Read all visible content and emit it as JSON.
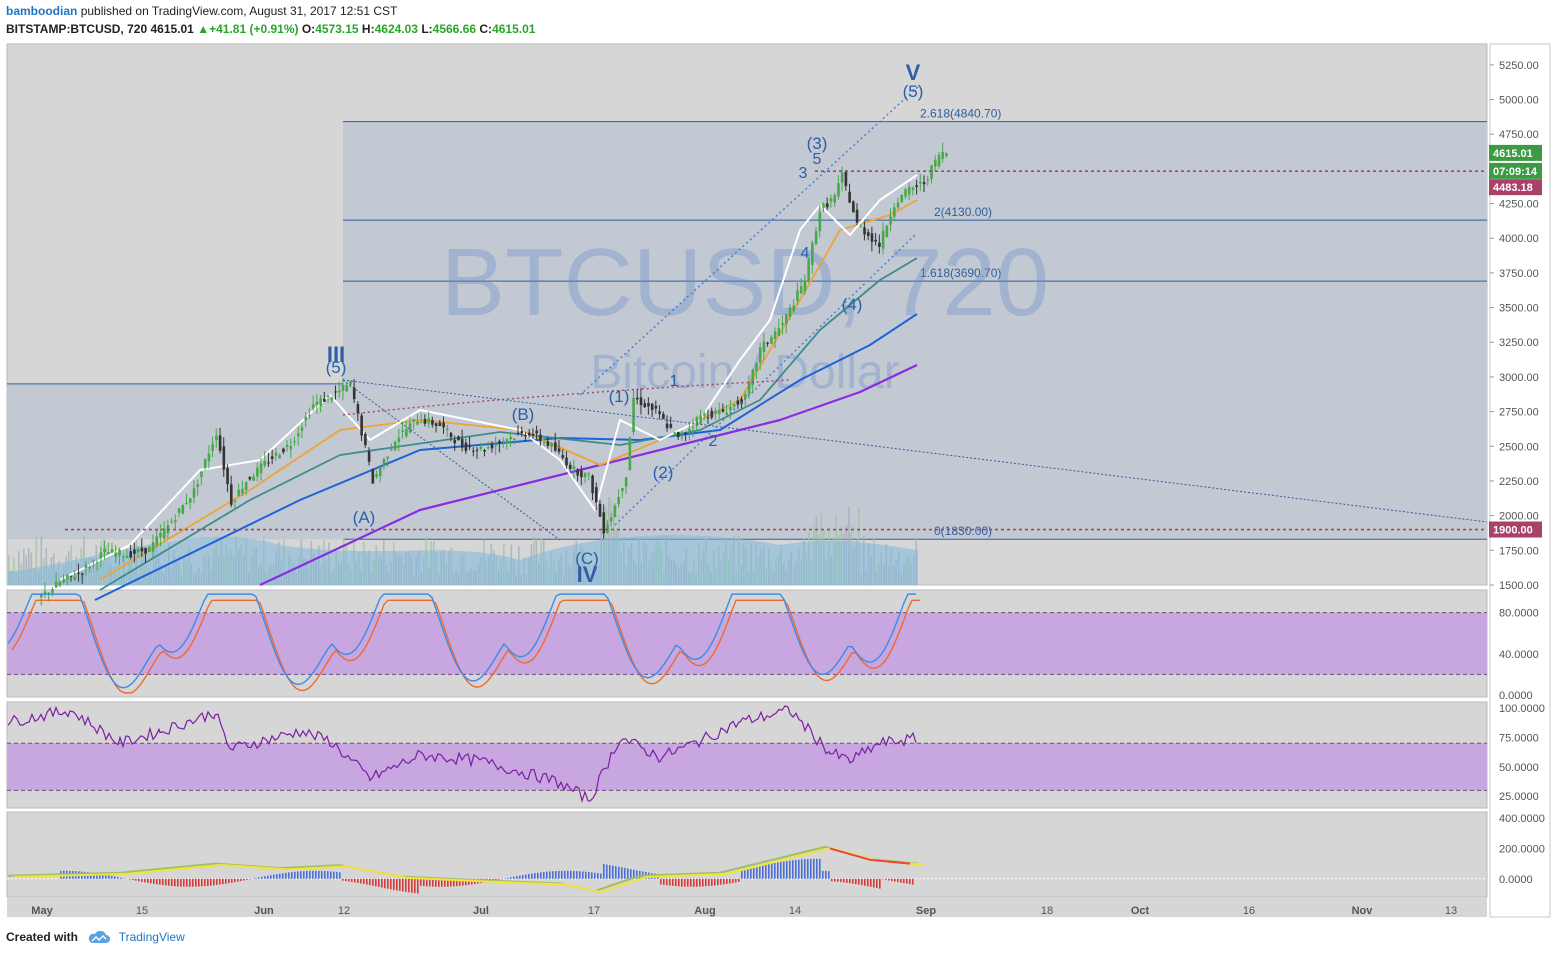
{
  "header": {
    "author": "bamboodian",
    "published_text": "published on TradingView.com, August 31, 2017 12:51 CST",
    "symbol": "BITSTAMP:BTCUSD, 720",
    "last": "4615.01",
    "change": "+41.81 (+0.91%)",
    "o_label": "O:",
    "o": "4573.15",
    "h_label": "H:",
    "h": "4624.03",
    "l_label": "L:",
    "l": "4566.66",
    "c_label": "C:",
    "c": "4615.01"
  },
  "watermark": {
    "symbol": "BTCUSD, 720",
    "name": "Bitcoin / Dollar"
  },
  "footer": {
    "created_with": "Created with",
    "brand": "TradingView"
  },
  "colors": {
    "panel_bg": "#d6d6d6",
    "fib_zone": "#c2c9d3",
    "up_candle": "#4aa84a",
    "down_candle": "#333333",
    "ema_fast": "#ffffff",
    "ema_mid": "#f0a232",
    "ema_slow": "#3f8c8c",
    "sma_100": "#1e62d8",
    "sma_200": "#8a2be2",
    "stoch_k": "#3d8be8",
    "stoch_d": "#ef6a2e",
    "rsi": "#7b1fa2",
    "band": "#c8a6e0",
    "wave_label": "#2c5fa8",
    "price_tag": "#3a9b43",
    "time_tag": "#3a9b43",
    "level_tag": "#a9416b",
    "level_1900": "#a9416b"
  },
  "chart_data": {
    "type": "candlestick",
    "symbol": "BITSTAMP:BTCUSD",
    "timeframe": "720",
    "x_axis_labels": [
      "May",
      "15",
      "Jun",
      "12",
      "Jul",
      "17",
      "Aug",
      "14",
      "Sep",
      "18",
      "Oct",
      "16",
      "Nov",
      "13"
    ],
    "y_axis_labels": [
      "5250.00",
      "5000.00",
      "4750.00",
      "4500.00",
      "4250.00",
      "4000.00",
      "3750.00",
      "3500.00",
      "3250.00",
      "3000.00",
      "2750.00",
      "2500.00",
      "2250.00",
      "2000.00",
      "1750.00",
      "1500.00"
    ],
    "ylim": [
      1500,
      5400
    ],
    "price_tags": {
      "last": "4615.01",
      "countdown": "07:09:14",
      "level": "4483.18",
      "support": "1900.00"
    },
    "fib_levels": [
      {
        "label": "2.618(4840.70)",
        "price": 4840.7
      },
      {
        "label": "2(4130.00)",
        "price": 4130.0
      },
      {
        "label": "1.618(3690.70)",
        "price": 3690.7
      },
      {
        "label": "0(1830.00)",
        "price": 1830.0
      }
    ],
    "close_series": [
      {
        "date": "2017-05-01",
        "close": 1400
      },
      {
        "date": "2017-05-04",
        "close": 1520
      },
      {
        "date": "2017-05-07",
        "close": 1600
      },
      {
        "date": "2017-05-10",
        "close": 1740
      },
      {
        "date": "2017-05-13",
        "close": 1720
      },
      {
        "date": "2017-05-16",
        "close": 1760
      },
      {
        "date": "2017-05-19",
        "close": 1960
      },
      {
        "date": "2017-05-22",
        "close": 2180
      },
      {
        "date": "2017-05-25",
        "close": 2600
      },
      {
        "date": "2017-05-27",
        "close": 2100
      },
      {
        "date": "2017-05-29",
        "close": 2250
      },
      {
        "date": "2017-06-01",
        "close": 2400
      },
      {
        "date": "2017-06-04",
        "close": 2520
      },
      {
        "date": "2017-06-07",
        "close": 2800
      },
      {
        "date": "2017-06-10",
        "close": 2880
      },
      {
        "date": "2017-06-12",
        "close": 2950
      },
      {
        "date": "2017-06-15",
        "close": 2250
      },
      {
        "date": "2017-06-18",
        "close": 2550
      },
      {
        "date": "2017-06-21",
        "close": 2700
      },
      {
        "date": "2017-06-24",
        "close": 2650
      },
      {
        "date": "2017-06-27",
        "close": 2500
      },
      {
        "date": "2017-06-30",
        "close": 2480
      },
      {
        "date": "2017-07-03",
        "close": 2560
      },
      {
        "date": "2017-07-06",
        "close": 2600
      },
      {
        "date": "2017-07-09",
        "close": 2500
      },
      {
        "date": "2017-07-12",
        "close": 2330
      },
      {
        "date": "2017-07-14",
        "close": 2280
      },
      {
        "date": "2017-07-16",
        "close": 1900
      },
      {
        "date": "2017-07-17",
        "close": 2000
      },
      {
        "date": "2017-07-19",
        "close": 2300
      },
      {
        "date": "2017-07-20",
        "close": 2850
      },
      {
        "date": "2017-07-23",
        "close": 2750
      },
      {
        "date": "2017-07-26",
        "close": 2550
      },
      {
        "date": "2017-07-29",
        "close": 2720
      },
      {
        "date": "2017-08-01",
        "close": 2750
      },
      {
        "date": "2017-08-04",
        "close": 2850
      },
      {
        "date": "2017-08-06",
        "close": 3200
      },
      {
        "date": "2017-08-09",
        "close": 3380
      },
      {
        "date": "2017-08-12",
        "close": 3700
      },
      {
        "date": "2017-08-14",
        "close": 4200
      },
      {
        "date": "2017-08-16",
        "close": 4300
      },
      {
        "date": "2017-08-17",
        "close": 4450
      },
      {
        "date": "2017-08-19",
        "close": 4100
      },
      {
        "date": "2017-08-22",
        "close": 3950
      },
      {
        "date": "2017-08-24",
        "close": 4250
      },
      {
        "date": "2017-08-26",
        "close": 4350
      },
      {
        "date": "2017-08-28",
        "close": 4400
      },
      {
        "date": "2017-08-30",
        "close": 4600
      },
      {
        "date": "2017-08-31",
        "close": 4615
      }
    ],
    "wave_labels": [
      "III",
      "(5)",
      "(A)",
      "(B)",
      "(C)",
      "IV",
      "(1)",
      "1",
      "(2)",
      "2",
      "3",
      "4",
      "5",
      "(3)",
      "(4)",
      "V",
      "(5)"
    ],
    "oscillators": [
      {
        "name": "Stochastic",
        "y_axis_labels": [
          "80.0000",
          "40.0000",
          "0.0000"
        ],
        "bands": [
          20,
          80
        ]
      },
      {
        "name": "RSI",
        "y_axis_labels": [
          "100.0000",
          "75.0000",
          "50.0000",
          "25.0000"
        ],
        "bands": [
          30,
          70
        ]
      },
      {
        "name": "MACD",
        "y_axis_labels": [
          "400.0000",
          "200.0000",
          "0.0000"
        ]
      }
    ]
  }
}
